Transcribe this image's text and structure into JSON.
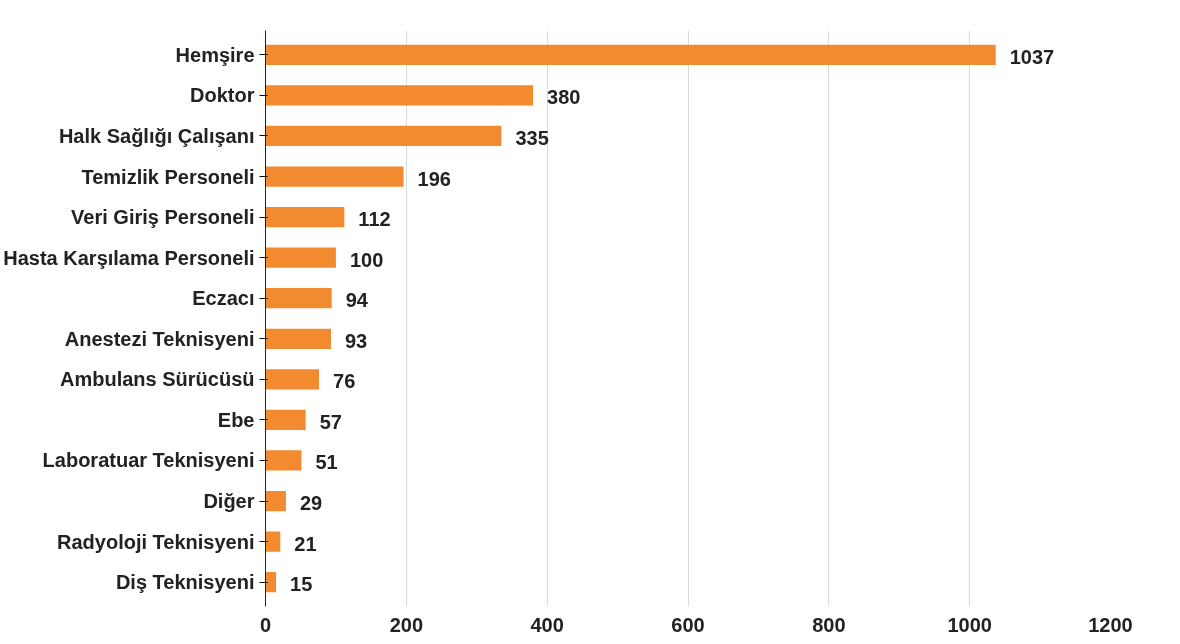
{
  "chart_data": {
    "type": "bar",
    "orientation": "horizontal",
    "categories": [
      "Hemşire",
      "Doktor",
      "Halk Sağlığı Çalışanı",
      "Temizlik Personeli",
      "Veri Giriş Personeli",
      "Hasta Karşılama Personeli",
      "Eczacı",
      "Anestezi Teknisyeni",
      "Ambulans Sürücüsü",
      "Ebe",
      "Laboratuar Teknisyeni",
      "Diğer",
      "Radyoloji Teknisyeni",
      "Diş Teknisyeni"
    ],
    "values": [
      1037,
      380,
      335,
      196,
      112,
      100,
      94,
      93,
      76,
      57,
      51,
      29,
      21,
      15
    ],
    "color": "#f28a30",
    "xlim": [
      0,
      1200
    ],
    "xticks": [
      0,
      200,
      400,
      600,
      800,
      1000,
      1200
    ],
    "grid": "x",
    "data_labels": true
  }
}
